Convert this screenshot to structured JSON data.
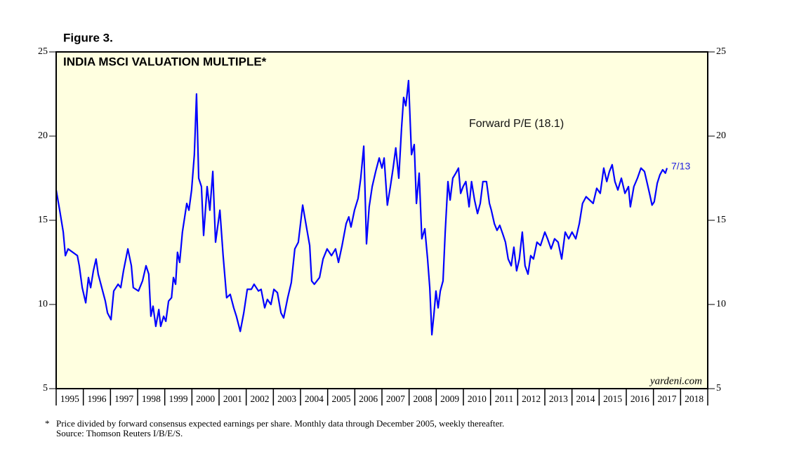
{
  "chart_data": {
    "type": "line",
    "figure_label": "Figure 3.",
    "title": "INDIA MSCI VALUATION MULTIPLE*",
    "source_mark": "yardeni.com",
    "annotations": [
      {
        "text": "Forward P/E (18.1)",
        "color": "#111111"
      },
      {
        "text": "7/13",
        "color": "#2222dd"
      }
    ],
    "footnote": {
      "marker": "*",
      "lines": [
        "Price divided by forward consensus expected earnings per share. Monthly data through December 2005, weekly thereafter.",
        "Source: Thomson Reuters I/B/E/S."
      ]
    },
    "background": "#ffffe0",
    "xlim": [
      1995,
      2019
    ],
    "xticks": [
      {
        "value": 1995,
        "label": "1995"
      },
      {
        "value": 1996,
        "label": "1996"
      },
      {
        "value": 1997,
        "label": "1997"
      },
      {
        "value": 1998,
        "label": "1998"
      },
      {
        "value": 1999,
        "label": "1999"
      },
      {
        "value": 2000,
        "label": "2000"
      },
      {
        "value": 2001,
        "label": "2001"
      },
      {
        "value": 2002,
        "label": "2002"
      },
      {
        "value": 2003,
        "label": "2003"
      },
      {
        "value": 2004,
        "label": "2004"
      },
      {
        "value": 2005,
        "label": "2005"
      },
      {
        "value": 2006,
        "label": "2006"
      },
      {
        "value": 2007,
        "label": "2007"
      },
      {
        "value": 2008,
        "label": "2008"
      },
      {
        "value": 2009,
        "label": "2009"
      },
      {
        "value": 2010,
        "label": "2010"
      },
      {
        "value": 2011,
        "label": "2011"
      },
      {
        "value": 2012,
        "label": "2012"
      },
      {
        "value": 2013,
        "label": "2013"
      },
      {
        "value": 2014,
        "label": "2014"
      },
      {
        "value": 2015,
        "label": "2015"
      },
      {
        "value": 2016,
        "label": "2016"
      },
      {
        "value": 2017,
        "label": "2017"
      },
      {
        "value": 2018,
        "label": "2018"
      }
    ],
    "ylim": [
      5,
      25
    ],
    "yticks": [
      5,
      10,
      15,
      20,
      25
    ],
    "series": [
      {
        "color": "#0000ff",
        "x": [
          1995.0,
          1995.13,
          1995.26,
          1995.34,
          1995.44,
          1995.78,
          1995.85,
          1995.96,
          1996.09,
          1996.19,
          1996.27,
          1996.37,
          1996.47,
          1996.55,
          1996.81,
          1996.89,
          1997.02,
          1997.12,
          1997.28,
          1997.38,
          1997.48,
          1997.64,
          1997.77,
          1997.84,
          1998.03,
          1998.18,
          1998.31,
          1998.41,
          1998.49,
          1998.57,
          1998.67,
          1998.78,
          1998.85,
          1998.96,
          1999.04,
          1999.14,
          1999.25,
          1999.32,
          1999.4,
          1999.47,
          1999.55,
          1999.65,
          1999.81,
          1999.89,
          1999.99,
          2000.09,
          2000.17,
          2000.25,
          2000.35,
          2000.43,
          2000.56,
          2000.66,
          2000.77,
          2000.87,
          2001.03,
          2001.15,
          2001.28,
          2001.41,
          2001.54,
          2001.64,
          2001.78,
          2001.91,
          2002.04,
          2002.19,
          2002.29,
          2002.45,
          2002.55,
          2002.68,
          2002.78,
          2002.91,
          2003.02,
          2003.15,
          2003.28,
          2003.38,
          2003.53,
          2003.66,
          2003.79,
          2003.92,
          2004.08,
          2004.23,
          2004.34,
          2004.41,
          2004.51,
          2004.7,
          2004.83,
          2004.98,
          2005.14,
          2005.29,
          2005.4,
          2005.53,
          2005.68,
          2005.78,
          2005.86,
          2005.99,
          2006.12,
          2006.22,
          2006.33,
          2006.43,
          2006.53,
          2006.64,
          2006.77,
          2006.9,
          2007.0,
          2007.08,
          2007.2,
          2007.31,
          2007.41,
          2007.51,
          2007.62,
          2007.72,
          2007.8,
          2007.88,
          2007.98,
          2008.09,
          2008.19,
          2008.27,
          2008.37,
          2008.47,
          2008.58,
          2008.68,
          2008.76,
          2008.84,
          2008.92,
          2008.99,
          2009.07,
          2009.15,
          2009.25,
          2009.33,
          2009.43,
          2009.51,
          2009.61,
          2009.72,
          2009.82,
          2009.9,
          2009.99,
          2010.09,
          2010.21,
          2010.3,
          2010.41,
          2010.52,
          2010.62,
          2010.72,
          2010.85,
          2010.96,
          2011.03,
          2011.14,
          2011.24,
          2011.34,
          2011.47,
          2011.55,
          2011.65,
          2011.76,
          2011.86,
          2011.96,
          2012.06,
          2012.17,
          2012.27,
          2012.38,
          2012.48,
          2012.58,
          2012.71,
          2012.84,
          2013.0,
          2013.1,
          2013.23,
          2013.36,
          2013.49,
          2013.62,
          2013.75,
          2013.88,
          2014.0,
          2014.14,
          2014.27,
          2014.39,
          2014.52,
          2014.65,
          2014.78,
          2014.91,
          2015.04,
          2015.17,
          2015.28,
          2015.38,
          2015.48,
          2015.58,
          2015.69,
          2015.82,
          2015.95,
          2016.08,
          2016.15,
          2016.28,
          2016.41,
          2016.54,
          2016.67,
          2016.77,
          2016.87,
          2016.95,
          2017.03,
          2017.14,
          2017.24,
          2017.34,
          2017.44,
          2017.5
        ],
        "values": [
          16.8,
          15.6,
          14.3,
          12.9,
          13.3,
          12.9,
          12.3,
          11.0,
          10.1,
          11.6,
          11.0,
          12.0,
          12.7,
          11.8,
          10.2,
          9.5,
          9.1,
          10.8,
          11.2,
          11.0,
          12.0,
          13.3,
          12.3,
          11.0,
          10.8,
          11.4,
          12.3,
          11.8,
          9.3,
          9.9,
          8.7,
          9.7,
          8.7,
          9.3,
          9.0,
          10.2,
          10.4,
          11.6,
          11.2,
          13.1,
          12.5,
          14.3,
          16.0,
          15.6,
          16.8,
          18.9,
          22.5,
          17.5,
          17.0,
          14.1,
          17.0,
          15.6,
          17.9,
          13.7,
          15.6,
          12.9,
          10.4,
          10.6,
          9.8,
          9.3,
          8.4,
          9.5,
          10.9,
          10.9,
          11.2,
          10.8,
          10.9,
          9.8,
          10.3,
          10.0,
          10.9,
          10.7,
          9.5,
          9.2,
          10.4,
          11.3,
          13.3,
          13.7,
          15.9,
          14.5,
          13.5,
          11.4,
          11.2,
          11.6,
          12.7,
          13.3,
          12.9,
          13.3,
          12.5,
          13.5,
          14.8,
          15.2,
          14.6,
          15.6,
          16.3,
          17.5,
          19.4,
          13.6,
          15.8,
          17.0,
          17.9,
          18.7,
          18.1,
          18.7,
          15.9,
          17.0,
          18.1,
          19.3,
          17.5,
          20.4,
          22.3,
          21.8,
          23.3,
          18.9,
          19.5,
          16.0,
          17.8,
          13.9,
          14.5,
          12.7,
          11.0,
          8.2,
          9.5,
          10.8,
          9.8,
          10.8,
          11.4,
          14.3,
          17.3,
          16.2,
          17.5,
          17.8,
          18.1,
          16.6,
          17.0,
          17.3,
          15.8,
          17.3,
          16.2,
          15.4,
          16.0,
          17.3,
          17.3,
          16.0,
          15.6,
          14.8,
          14.4,
          14.7,
          14.1,
          13.7,
          12.7,
          12.3,
          13.4,
          12.0,
          12.7,
          14.3,
          12.3,
          11.8,
          12.9,
          12.7,
          13.7,
          13.5,
          14.3,
          13.9,
          13.3,
          13.9,
          13.7,
          12.7,
          14.3,
          13.9,
          14.3,
          13.9,
          14.8,
          16.0,
          16.4,
          16.2,
          16.0,
          16.9,
          16.6,
          18.1,
          17.3,
          17.9,
          18.3,
          17.3,
          16.8,
          17.5,
          16.6,
          17.0,
          15.8,
          17.0,
          17.5,
          18.1,
          17.9,
          17.2,
          16.5,
          15.9,
          16.1,
          17.2,
          17.7,
          18.0,
          17.8,
          18.1
        ]
      }
    ]
  }
}
